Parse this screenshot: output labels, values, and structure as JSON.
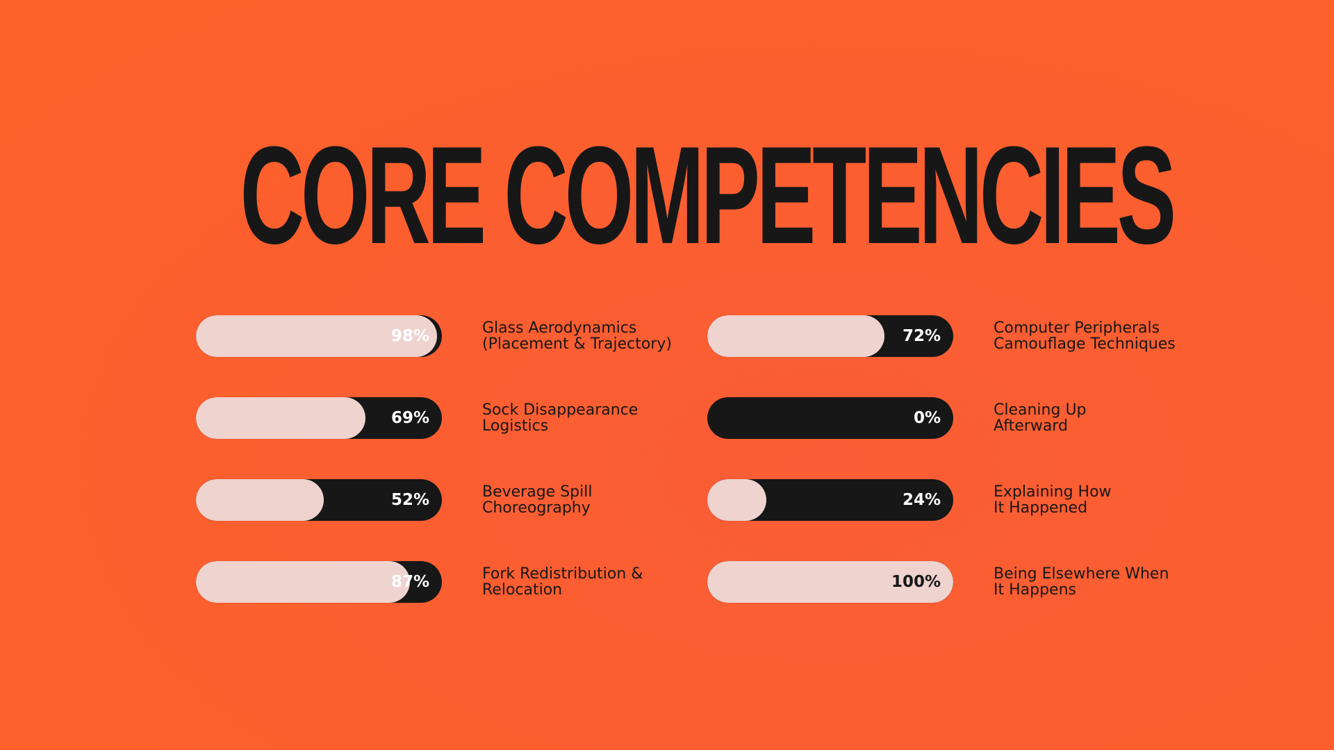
{
  "title": "CORE COMPETENCIES",
  "colors": {
    "background": "#fe612a",
    "bar_track": "#171717",
    "bar_fill": "#eed3cf",
    "text": "#171717"
  },
  "skills": [
    {
      "label": "Glass Aerodynamics\n(Placement & Trajectory)",
      "percent_label": "98%",
      "value": 98
    },
    {
      "label": "Computer Peripherals\nCamouflage Techniques",
      "percent_label": "72%",
      "value": 72
    },
    {
      "label": "Sock Disappearance\nLogistics",
      "percent_label": "69%",
      "value": 69
    },
    {
      "label": "Cleaning Up\nAfterward",
      "percent_label": "0%",
      "value": 0
    },
    {
      "label": "Beverage Spill\nChoreography",
      "percent_label": "52%",
      "value": 52
    },
    {
      "label": "Explaining How\nIt Happened",
      "percent_label": "24%",
      "value": 24
    },
    {
      "label": "Fork Redistribution &\nRelocation",
      "percent_label": "87%",
      "value": 87
    },
    {
      "label": "Being Elsewhere When\nIt Happens",
      "percent_label": "100%",
      "value": 100
    }
  ]
}
